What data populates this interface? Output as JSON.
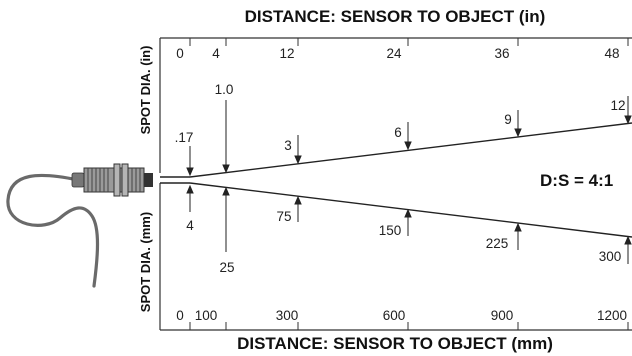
{
  "top_title": "DISTANCE: SENSOR TO OBJECT  (in)",
  "bottom_title": "DISTANCE: SENSOR TO OBJECT (mm)",
  "left_top_label": "SPOT DIA. (in)",
  "left_bottom_label": "SPOT DIA. (mm)",
  "ratio_label": "D:S = 4:1",
  "top_ticks": [
    "0",
    "4",
    "12",
    "24",
    "36",
    "48"
  ],
  "bottom_ticks": [
    "0",
    "100",
    "300",
    "600",
    "900",
    "1200"
  ],
  "spot_in": [
    ".17",
    "1.0",
    "3",
    "6",
    "9",
    "12"
  ],
  "spot_mm": [
    "4",
    "25",
    "75",
    "150",
    "225",
    "300"
  ],
  "colors": {
    "line": "#222222",
    "sensor": "#555555",
    "cable": "#6a6a6a"
  }
}
